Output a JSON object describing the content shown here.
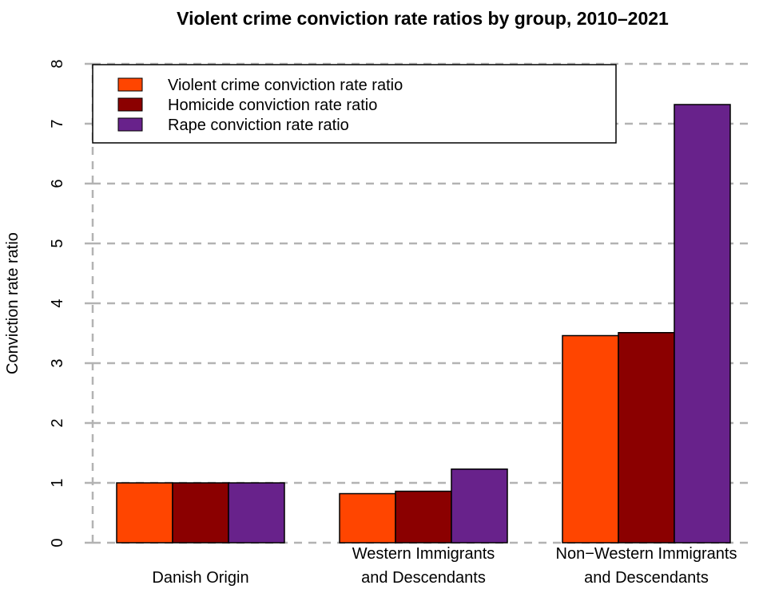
{
  "chart_data": {
    "type": "bar",
    "title": "Violent crime conviction rate ratios by group, 2010–2021",
    "xlabel": "",
    "ylabel": "Conviction rate ratio",
    "ylim": [
      0,
      8
    ],
    "yticks": [
      0,
      1,
      2,
      3,
      4,
      5,
      6,
      7,
      8
    ],
    "grid": true,
    "legend_position": "top-left",
    "categories": [
      [
        "Danish Origin"
      ],
      [
        "Western Immigrants",
        "and Descendants"
      ],
      [
        "Non−Western Immigrants",
        "and Descendants"
      ]
    ],
    "series": [
      {
        "name": "Violent crime conviction rate ratio",
        "color": "#FF4500",
        "values": [
          1.0,
          0.82,
          3.46
        ]
      },
      {
        "name": "Homicide conviction rate ratio",
        "color": "#8B0000",
        "values": [
          1.0,
          0.86,
          3.51
        ]
      },
      {
        "name": "Rape conviction rate ratio",
        "color": "#68228B",
        "values": [
          1.0,
          1.23,
          7.32
        ]
      }
    ]
  }
}
